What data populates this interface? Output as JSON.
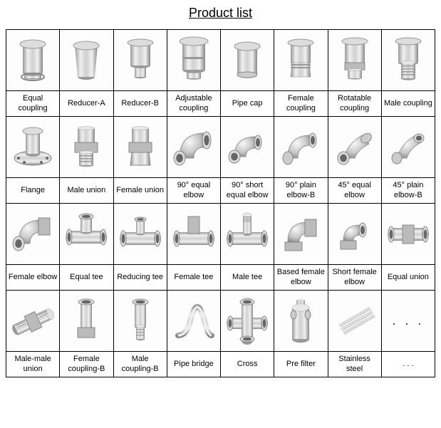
{
  "title": "Product list",
  "colors": {
    "metal_light": "#e8e8e8",
    "metal_mid": "#c0c0c0",
    "metal_dark": "#888888",
    "metal_shine": "#f8f8f8",
    "border": "#000000",
    "background": "#ffffff"
  },
  "grid": {
    "columns": 8,
    "rows": 4
  },
  "products": [
    {
      "label": "Equal coupling",
      "icon": "coupling"
    },
    {
      "label": "Reducer-A",
      "icon": "reducer-a"
    },
    {
      "label": "Reducer-B",
      "icon": "reducer-b"
    },
    {
      "label": "Adjustable coupling",
      "icon": "adjustable"
    },
    {
      "label": "Pipe cap",
      "icon": "cap"
    },
    {
      "label": "Female coupling",
      "icon": "female-coupling"
    },
    {
      "label": "Rotatable coupling",
      "icon": "rotatable"
    },
    {
      "label": "Male coupling",
      "icon": "male-coupling"
    },
    {
      "label": "Flange",
      "icon": "flange"
    },
    {
      "label": "Male union",
      "icon": "male-union"
    },
    {
      "label": "Female union",
      "icon": "female-union"
    },
    {
      "label": "90° equal elbow",
      "icon": "elbow-90"
    },
    {
      "label": "90° short equal elbow",
      "icon": "elbow-90-short"
    },
    {
      "label": "90° plain elbow-B",
      "icon": "elbow-90-plain"
    },
    {
      "label": "45° equal elbow",
      "icon": "elbow-45"
    },
    {
      "label": "45° plain elbow-B",
      "icon": "elbow-45-plain"
    },
    {
      "label": "Female elbow",
      "icon": "female-elbow"
    },
    {
      "label": "Equal tee",
      "icon": "equal-tee"
    },
    {
      "label": "Reducing tee",
      "icon": "reducing-tee"
    },
    {
      "label": "Female tee",
      "icon": "female-tee"
    },
    {
      "label": "Male tee",
      "icon": "male-tee"
    },
    {
      "label": "Based female elbow",
      "icon": "based-elbow"
    },
    {
      "label": "Short female elbow",
      "icon": "short-elbow"
    },
    {
      "label": "Equal union",
      "icon": "equal-union"
    },
    {
      "label": "Male-male union",
      "icon": "mm-union"
    },
    {
      "label": "Female coupling-B",
      "icon": "female-b"
    },
    {
      "label": "Male coupling-B",
      "icon": "male-b"
    },
    {
      "label": "Pipe bridge",
      "icon": "bridge"
    },
    {
      "label": "Cross",
      "icon": "cross"
    },
    {
      "label": "Pre filter",
      "icon": "filter"
    },
    {
      "label": "Stainless steel",
      "icon": "steel"
    },
    {
      "label": ". . .",
      "icon": "ellipsis"
    }
  ]
}
